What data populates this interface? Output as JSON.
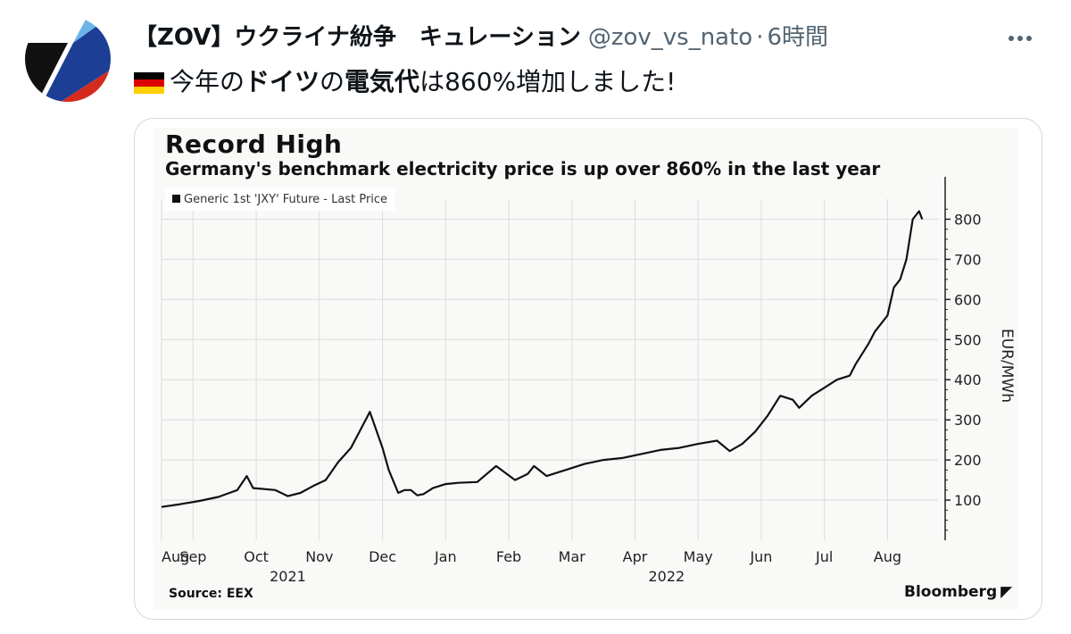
{
  "tweet": {
    "author_name": "【ZOV】ウクライナ紛争　キュレーション",
    "handle": "@zov_vs_nato",
    "separator": "·",
    "time": "6時間",
    "text_parts": [
      "今年の",
      "ドイツ",
      "の",
      "電気代",
      "は860%増加しました!"
    ],
    "more_icon": "more-horizontal-icon",
    "flag_icon": "germany-flag-icon"
  },
  "colors": {
    "text": "#0f1419",
    "secondary": "#536471",
    "border": "#cfd9de",
    "flag": [
      "#000000",
      "#dd0000",
      "#ffce00"
    ],
    "avatar": [
      "#1c3f95",
      "#d52b1e",
      "#6cb4e8",
      "#111111"
    ]
  },
  "chart_data": {
    "type": "line",
    "title": "Record High",
    "subtitle": "Germany's benchmark electricity price is up over 860% in the last year",
    "legend": "Generic 1st 'JXY' Future - Last Price",
    "ylabel": "EUR/MWh",
    "ylim": [
      0,
      850
    ],
    "yticks": [
      100,
      200,
      300,
      400,
      500,
      600,
      700,
      800
    ],
    "x_ticks": [
      "Aug",
      "Sep",
      "Oct",
      "Nov",
      "Dec",
      "Jan",
      "Feb",
      "Mar",
      "Apr",
      "May",
      "Jun",
      "Jul",
      "Aug"
    ],
    "x_tick_positions": [
      0,
      0.5,
      1.5,
      2.5,
      3.5,
      4.5,
      5.5,
      6.5,
      7.5,
      8.5,
      9.5,
      10.5,
      11.5
    ],
    "x_unit": "months since 2021-08",
    "year_labels": [
      {
        "text": "2021",
        "x": 2.0
      },
      {
        "text": "2022",
        "x": 8.0
      }
    ],
    "xlim": [
      0,
      12.3
    ],
    "grid": true,
    "source": "Source: EEX",
    "brand": "Bloomberg",
    "series": [
      {
        "name": "Generic 1st 'JXY' Future - Last Price",
        "x": [
          0,
          0.3,
          0.6,
          0.9,
          1.2,
          1.35,
          1.45,
          1.6,
          1.8,
          2.0,
          2.2,
          2.4,
          2.6,
          2.8,
          3.0,
          3.3,
          3.5,
          3.6,
          3.75,
          3.85,
          3.95,
          4.05,
          4.15,
          4.3,
          4.5,
          4.7,
          5.0,
          5.3,
          5.6,
          5.8,
          5.9,
          6.1,
          6.3,
          6.5,
          6.7,
          7.0,
          7.3,
          7.6,
          7.9,
          8.2,
          8.5,
          8.8,
          9.0,
          9.2,
          9.4,
          9.6,
          9.8,
          10.0,
          10.1,
          10.3,
          10.5,
          10.7,
          10.9,
          11.0,
          11.2,
          11.3,
          11.5,
          11.6,
          11.7,
          11.8,
          11.9,
          12.0,
          12.05
        ],
        "values": [
          83,
          90,
          98,
          108,
          125,
          160,
          130,
          128,
          125,
          110,
          118,
          135,
          150,
          195,
          230,
          320,
          230,
          175,
          118,
          125,
          125,
          112,
          115,
          130,
          140,
          143,
          145,
          185,
          150,
          165,
          185,
          160,
          170,
          180,
          190,
          200,
          205,
          215,
          225,
          230,
          240,
          248,
          222,
          240,
          270,
          310,
          360,
          350,
          330,
          360,
          380,
          400,
          410,
          440,
          490,
          520,
          560,
          630,
          650,
          700,
          800,
          820,
          800
        ]
      }
    ]
  }
}
